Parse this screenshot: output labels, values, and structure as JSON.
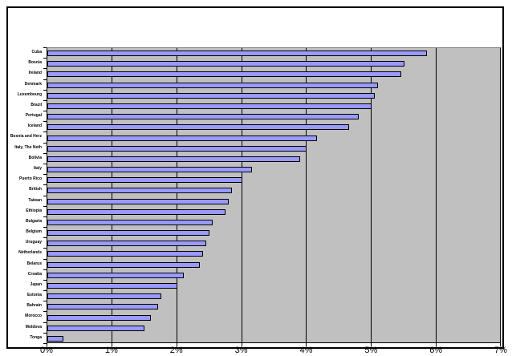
{
  "chart_data": {
    "type": "bar",
    "orientation": "horizontal",
    "title": "",
    "xlabel": "",
    "ylabel": "",
    "xlim": [
      0,
      7
    ],
    "x_tick_labels": [
      "0%",
      "1%",
      "2%",
      "3%",
      "4%",
      "5%",
      "6%",
      "7%"
    ],
    "grid": true,
    "legend": false,
    "note": "category labels are rendered ~4px tall in source and are approximated",
    "colors": {
      "bar_fill": "#9999ff",
      "bar_border": "#000000",
      "plot_background": "#c0c0c0",
      "gridline": "#000000",
      "chart_background": "#ffffff",
      "frame_border": "#000000"
    },
    "categories": [
      "Cuba",
      "Bosnia",
      "Ireland",
      "Denmark",
      "Luxembourg",
      "Brazil",
      "Portugal",
      "Iceland",
      "Bosnia and Herz",
      "Italy, The Neth",
      "Bolivia",
      "Italy",
      "Puerto Rico",
      "British",
      "Taiwan",
      "Ethiopia",
      "Bulgaria",
      "Belgium",
      "Uruguay",
      "Netherlands",
      "Belarus",
      "Croatia",
      "Japan",
      "Estonia",
      "Bahrain",
      "Morocco",
      "Moldova",
      "Tonga"
    ],
    "values": [
      5.85,
      5.5,
      5.45,
      5.1,
      5.05,
      5.0,
      4.8,
      4.65,
      4.15,
      4.0,
      3.9,
      3.15,
      3.0,
      2.85,
      2.8,
      2.75,
      2.55,
      2.5,
      2.45,
      2.4,
      2.35,
      2.1,
      2.0,
      1.75,
      1.7,
      1.6,
      1.5,
      0.25
    ]
  }
}
